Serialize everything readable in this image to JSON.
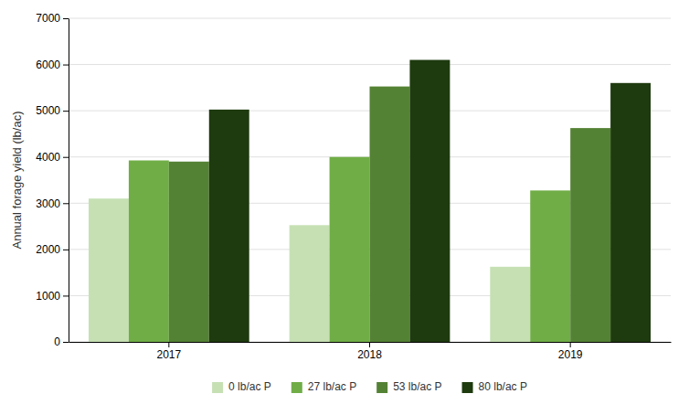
{
  "chart_data": {
    "type": "bar",
    "categories": [
      "2017",
      "2018",
      "2019"
    ],
    "series": [
      {
        "name": "0 lb/ac P",
        "color": "#c6e0b4",
        "values": [
          3100,
          2525,
          1625
        ]
      },
      {
        "name": "27 lb/ac P",
        "color": "#70ad47",
        "values": [
          3925,
          4000,
          3275
        ]
      },
      {
        "name": "53 lb/ac P",
        "color": "#548235",
        "values": [
          3900,
          5525,
          4625
        ]
      },
      {
        "name": "80 lb/ac P",
        "color": "#1e3a0f",
        "values": [
          5025,
          6100,
          5600
        ]
      }
    ],
    "ylabel": "Annual forage yield (lb/ac)",
    "ylim": [
      0,
      7000
    ],
    "yticks": [
      0,
      1000,
      2000,
      3000,
      4000,
      5000,
      6000,
      7000
    ],
    "grid": true,
    "legend": "bottom"
  }
}
